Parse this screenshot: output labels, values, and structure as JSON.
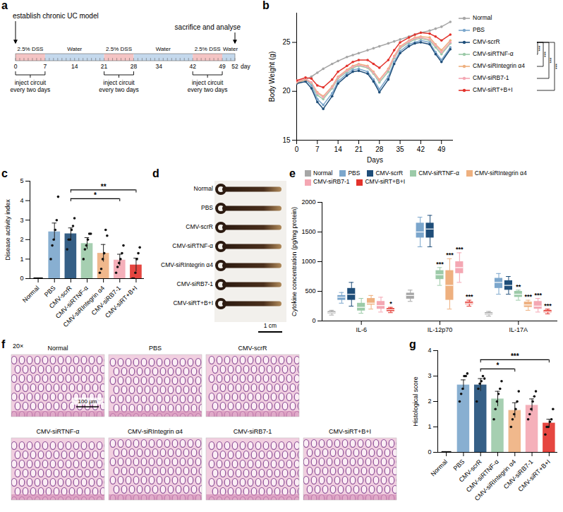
{
  "chart_data": [
    {
      "panel": "b",
      "type": "line",
      "xlabel": "Days",
      "ylabel": "Body Weight (g)",
      "x": [
        0,
        3,
        5,
        7,
        9,
        12,
        14,
        17,
        19,
        21,
        24,
        26,
        28,
        31,
        33,
        35,
        38,
        40,
        42,
        45,
        47,
        49,
        52
      ],
      "xlim": [
        0,
        53
      ],
      "xticks": [
        0,
        7,
        14,
        21,
        28,
        35,
        42,
        49
      ],
      "ylim": [
        15,
        28
      ],
      "yticks": [
        15,
        20,
        25
      ],
      "marker": "circle",
      "legend": "right",
      "series": [
        {
          "name": "Normal",
          "color": "#a6a6a6",
          "values": [
            20.8,
            21.2,
            21.5,
            21.9,
            22.3,
            22.8,
            23.1,
            23.5,
            23.7,
            23.9,
            24.2,
            24.4,
            24.6,
            24.9,
            25.1,
            25.3,
            25.6,
            25.8,
            26.0,
            26.2,
            26.4,
            26.6,
            27.1
          ]
        },
        {
          "name": "PBS",
          "color": "#7ba6cc",
          "values": [
            20.9,
            21.2,
            20.6,
            19.2,
            18.6,
            19.8,
            21.0,
            21.8,
            22.2,
            22.3,
            22.0,
            21.2,
            20.2,
            21.5,
            23.0,
            24.1,
            24.8,
            25.0,
            25.2,
            25.0,
            24.0,
            23.2,
            24.5
          ]
        },
        {
          "name": "CMV-scrR",
          "color": "#1f4e79",
          "values": [
            20.8,
            21.0,
            20.3,
            18.9,
            18.2,
            19.5,
            20.8,
            21.6,
            22.0,
            22.1,
            21.8,
            21.0,
            19.9,
            21.2,
            22.8,
            23.9,
            24.6,
            24.9,
            25.0,
            24.8,
            23.8,
            23.0,
            24.3
          ]
        },
        {
          "name": "CMV-siRTNF-α",
          "color": "#9ccaa8",
          "values": [
            21.0,
            21.3,
            20.8,
            19.6,
            19.2,
            20.3,
            21.3,
            22.0,
            22.4,
            22.6,
            22.4,
            21.8,
            20.9,
            22.0,
            23.4,
            24.4,
            25.0,
            25.3,
            25.4,
            25.2,
            24.5,
            23.8,
            24.9
          ]
        },
        {
          "name": "CMV-siRIntegrin α4",
          "color": "#eeb07f",
          "values": [
            20.9,
            21.2,
            20.9,
            19.9,
            19.5,
            20.5,
            21.5,
            22.2,
            22.6,
            22.8,
            22.6,
            22.0,
            21.2,
            22.3,
            23.6,
            24.6,
            25.2,
            25.5,
            25.6,
            25.5,
            24.8,
            24.2,
            25.2
          ]
        },
        {
          "name": "CMV-siRB7-1",
          "color": "#f4a7b3",
          "values": [
            21.0,
            21.3,
            20.9,
            19.8,
            19.4,
            20.4,
            21.4,
            22.1,
            22.5,
            22.7,
            22.5,
            21.9,
            21.1,
            22.2,
            23.5,
            24.5,
            25.1,
            25.4,
            25.5,
            25.3,
            24.7,
            24.0,
            25.0
          ]
        },
        {
          "name": "CMV-siRT+B+I",
          "color": "#e3322b",
          "values": [
            21.1,
            21.4,
            21.3,
            20.6,
            20.4,
            21.2,
            22.0,
            22.6,
            23.0,
            23.2,
            23.2,
            22.8,
            22.4,
            23.2,
            24.2,
            25.0,
            25.5,
            25.8,
            26.0,
            25.9,
            25.6,
            25.2,
            25.8
          ]
        }
      ],
      "significance": [
        {
          "from": "CMV-scrR",
          "to": "CMV-siRTNF-α",
          "label": "***"
        },
        {
          "from": "CMV-scrR",
          "to": "CMV-siRIntegrin α4",
          "label": "***"
        },
        {
          "from": "CMV-scrR",
          "to": "CMV-siRB7-1",
          "label": "***"
        },
        {
          "from": "CMV-scrR",
          "to": "CMV-siRT+B+I",
          "label": "***"
        }
      ]
    },
    {
      "panel": "c",
      "type": "bar",
      "ylabel": "Disease activity index",
      "categories": [
        "Normal",
        "PBS",
        "CMV-scrR",
        "CMV-siRTNF-α",
        "CMV-siRIntegrin α4",
        "CMV-siRB7-1",
        "CMV-siRT+B+I"
      ],
      "values": [
        0,
        2.4,
        2.3,
        1.8,
        1.3,
        0.95,
        0.7
      ],
      "errors": [
        0,
        0.45,
        0.3,
        0.3,
        0.45,
        0.3,
        0.35
      ],
      "points": [
        [
          0,
          0,
          0,
          0,
          0,
          0
        ],
        [
          1.0,
          1.7,
          2.0,
          2.5,
          3.0,
          4.2
        ],
        [
          1.5,
          2.0,
          2.0,
          2.5,
          2.7,
          3.1
        ],
        [
          1.0,
          1.5,
          1.7,
          2.0,
          2.3,
          2.3
        ],
        [
          0.3,
          0.5,
          1.0,
          1.3,
          2.5,
          2.2
        ],
        [
          0.3,
          0.6,
          0.8,
          1.0,
          1.3,
          1.7
        ],
        [
          0,
          0,
          0.3,
          1.0,
          1.3,
          1.6
        ]
      ],
      "colors": [
        "#a6a6a6",
        "#7ba6cc",
        "#1f4e79",
        "#9ccaa8",
        "#eeb07f",
        "#f4a7b3",
        "#e3322b"
      ],
      "ylim": [
        0,
        5
      ],
      "yticks": [
        0,
        1,
        2,
        3,
        4,
        5
      ],
      "significance": [
        {
          "from": "CMV-scrR",
          "to": "CMV-siRB7-1",
          "label": "*"
        },
        {
          "from": "CMV-scrR",
          "to": "CMV-siRT+B+I",
          "label": "**"
        }
      ]
    },
    {
      "panel": "e",
      "type": "box",
      "ylabel": "Cytokine concentration (pg/mg protein)",
      "categories": [
        "IL-6",
        "IL-12p70",
        "IL-17A"
      ],
      "legend": "top",
      "ylim": [
        0,
        2000
      ],
      "yticks": [
        0,
        500,
        1000,
        1500,
        2000
      ],
      "series": [
        {
          "name": "Normal",
          "color": "#a6a6a6",
          "values": [
            [
              100,
              120,
              140,
              160,
              180
            ],
            [
              330,
              370,
              430,
              470,
              520
            ],
            [
              80,
              100,
              120,
              140,
              160
            ]
          ],
          "labels": [
            null,
            null,
            null
          ]
        },
        {
          "name": "PBS",
          "color": "#7ba6cc",
          "values": [
            [
              300,
              350,
              400,
              430,
              480
            ],
            [
              1250,
              1400,
              1500,
              1650,
              1750
            ],
            [
              450,
              550,
              650,
              720,
              800
            ]
          ],
          "labels": [
            null,
            null,
            null
          ]
        },
        {
          "name": "CMV-scrR",
          "color": "#1f4e79",
          "values": [
            [
              250,
              350,
              450,
              550,
              650
            ],
            [
              1250,
              1400,
              1550,
              1650,
              1780
            ],
            [
              450,
              520,
              600,
              680,
              750
            ]
          ],
          "labels": [
            null,
            null,
            null
          ]
        },
        {
          "name": "CMV-siRTNF-α",
          "color": "#9ccaa8",
          "values": [
            [
              130,
              170,
              230,
              300,
              380
            ],
            [
              600,
              700,
              780,
              850,
              900
            ],
            [
              350,
              400,
              450,
              500,
              520
            ]
          ],
          "labels": [
            null,
            "***",
            "**"
          ]
        },
        {
          "name": "CMV-siRIntegrin α4",
          "color": "#eeb07f",
          "values": [
            [
              200,
              270,
              300,
              380,
              430
            ],
            [
              200,
              350,
              600,
              850,
              1050
            ],
            [
              180,
              230,
              270,
              320,
              350
            ]
          ],
          "labels": [
            null,
            "***",
            "***"
          ]
        },
        {
          "name": "CMV-siRB7-1",
          "color": "#f4a7b3",
          "values": [
            [
              150,
              200,
              260,
              330,
              400
            ],
            [
              650,
              800,
              900,
              1000,
              1150
            ],
            [
              150,
              200,
              250,
              330,
              380
            ]
          ],
          "labels": [
            null,
            "***",
            "***"
          ]
        },
        {
          "name": "CMV-siRT+B+I",
          "color": "#e3322b",
          "values": [
            [
              140,
              160,
              190,
              210,
              230
            ],
            [
              250,
              280,
              300,
              320,
              350
            ],
            [
              120,
              140,
              160,
              180,
              200
            ]
          ],
          "labels": [
            "*",
            "***",
            "***"
          ]
        }
      ]
    },
    {
      "panel": "g",
      "type": "bar",
      "ylabel": "Histological score",
      "categories": [
        "Normal",
        "PBS",
        "CMV-scrR",
        "CMV-siRTNF-α",
        "CMV-siRIntegrin α4",
        "CMV-siRB7-1",
        "CMV-siRT+B+I"
      ],
      "values": [
        0,
        2.65,
        2.65,
        2.1,
        1.65,
        1.85,
        1.15
      ],
      "errors": [
        0,
        0.2,
        0.25,
        0.3,
        0.3,
        0.25,
        0.15
      ],
      "points": [
        [
          0,
          0,
          0,
          0,
          0,
          0
        ],
        [
          2.0,
          2.3,
          2.5,
          3.0,
          3.0,
          3.1
        ],
        [
          2.0,
          2.5,
          2.7,
          2.8,
          3.0,
          2.9
        ],
        [
          1.3,
          1.7,
          2.0,
          2.3,
          2.5,
          2.8
        ],
        [
          1.0,
          1.3,
          1.5,
          1.7,
          2.0,
          2.4
        ],
        [
          1.3,
          1.5,
          1.7,
          2.0,
          2.2,
          2.4
        ],
        [
          0.7,
          1.0,
          1.0,
          1.2,
          1.3,
          1.7
        ]
      ],
      "colors": [
        "#a6a6a6",
        "#7ba6cc",
        "#1f4e79",
        "#9ccaa8",
        "#eeb07f",
        "#f4a7b3",
        "#e3322b"
      ],
      "ylim": [
        0,
        4
      ],
      "yticks": [
        0,
        1,
        2,
        3,
        4
      ],
      "significance": [
        {
          "from": "CMV-scrR",
          "to": "CMV-siRIntegrin α4",
          "label": "*"
        },
        {
          "from": "CMV-scrR",
          "to": "CMV-siRT+B+I",
          "label": "***"
        }
      ]
    }
  ],
  "diagram": {
    "panel": "a",
    "start_label": "establish chronic UC model",
    "end_label": "sacrifice and analyse",
    "segments": [
      {
        "label": "2.5% DSS",
        "from": 0,
        "to": 7,
        "color": "#f4c4c4"
      },
      {
        "label": "Water",
        "from": 7,
        "to": 21,
        "color": "#c4d8ec"
      },
      {
        "label": "2.5% DSS",
        "from": 21,
        "to": 28,
        "color": "#f4c4c4"
      },
      {
        "label": "Water",
        "from": 28,
        "to": 42,
        "color": "#c4d8ec"
      },
      {
        "label": "2.5% DSS",
        "from": 42,
        "to": 49,
        "color": "#f4c4c4"
      },
      {
        "label": "Water",
        "from": 49,
        "to": 52,
        "color": "#c4d8ec"
      }
    ],
    "day_ticks": [
      0,
      7,
      14,
      21,
      28,
      34,
      42,
      49,
      52
    ],
    "day_unit": "day",
    "injections": [
      {
        "from": 0,
        "to": 7,
        "label": [
          "inject circuit",
          "every two days"
        ]
      },
      {
        "from": 21,
        "to": 28,
        "label": [
          "inject circuit",
          "every two days"
        ]
      },
      {
        "from": 42,
        "to": 49,
        "label": [
          "inject circuit",
          "every two days"
        ]
      }
    ]
  },
  "images": [
    {
      "panel": "d",
      "labels": [
        "Normal",
        "PBS",
        "CMV-scrR",
        "CMV-siRTNF-α",
        "CMV-siRIntegrin α4",
        "CMV-siRB7-1",
        "CMV-siRT+B+I"
      ],
      "scale_bar": "1 cm"
    },
    {
      "panel": "f",
      "magnification": "20×",
      "scale_bar": "100 µm",
      "rows": [
        [
          "Normal",
          "PBS",
          "CMV-scrR"
        ],
        [
          "CMV-siRTNF-α",
          "CMV-siRIntegrin α4",
          "CMV-siRB7-1",
          "CMV-siRT+B+I"
        ]
      ]
    }
  ]
}
